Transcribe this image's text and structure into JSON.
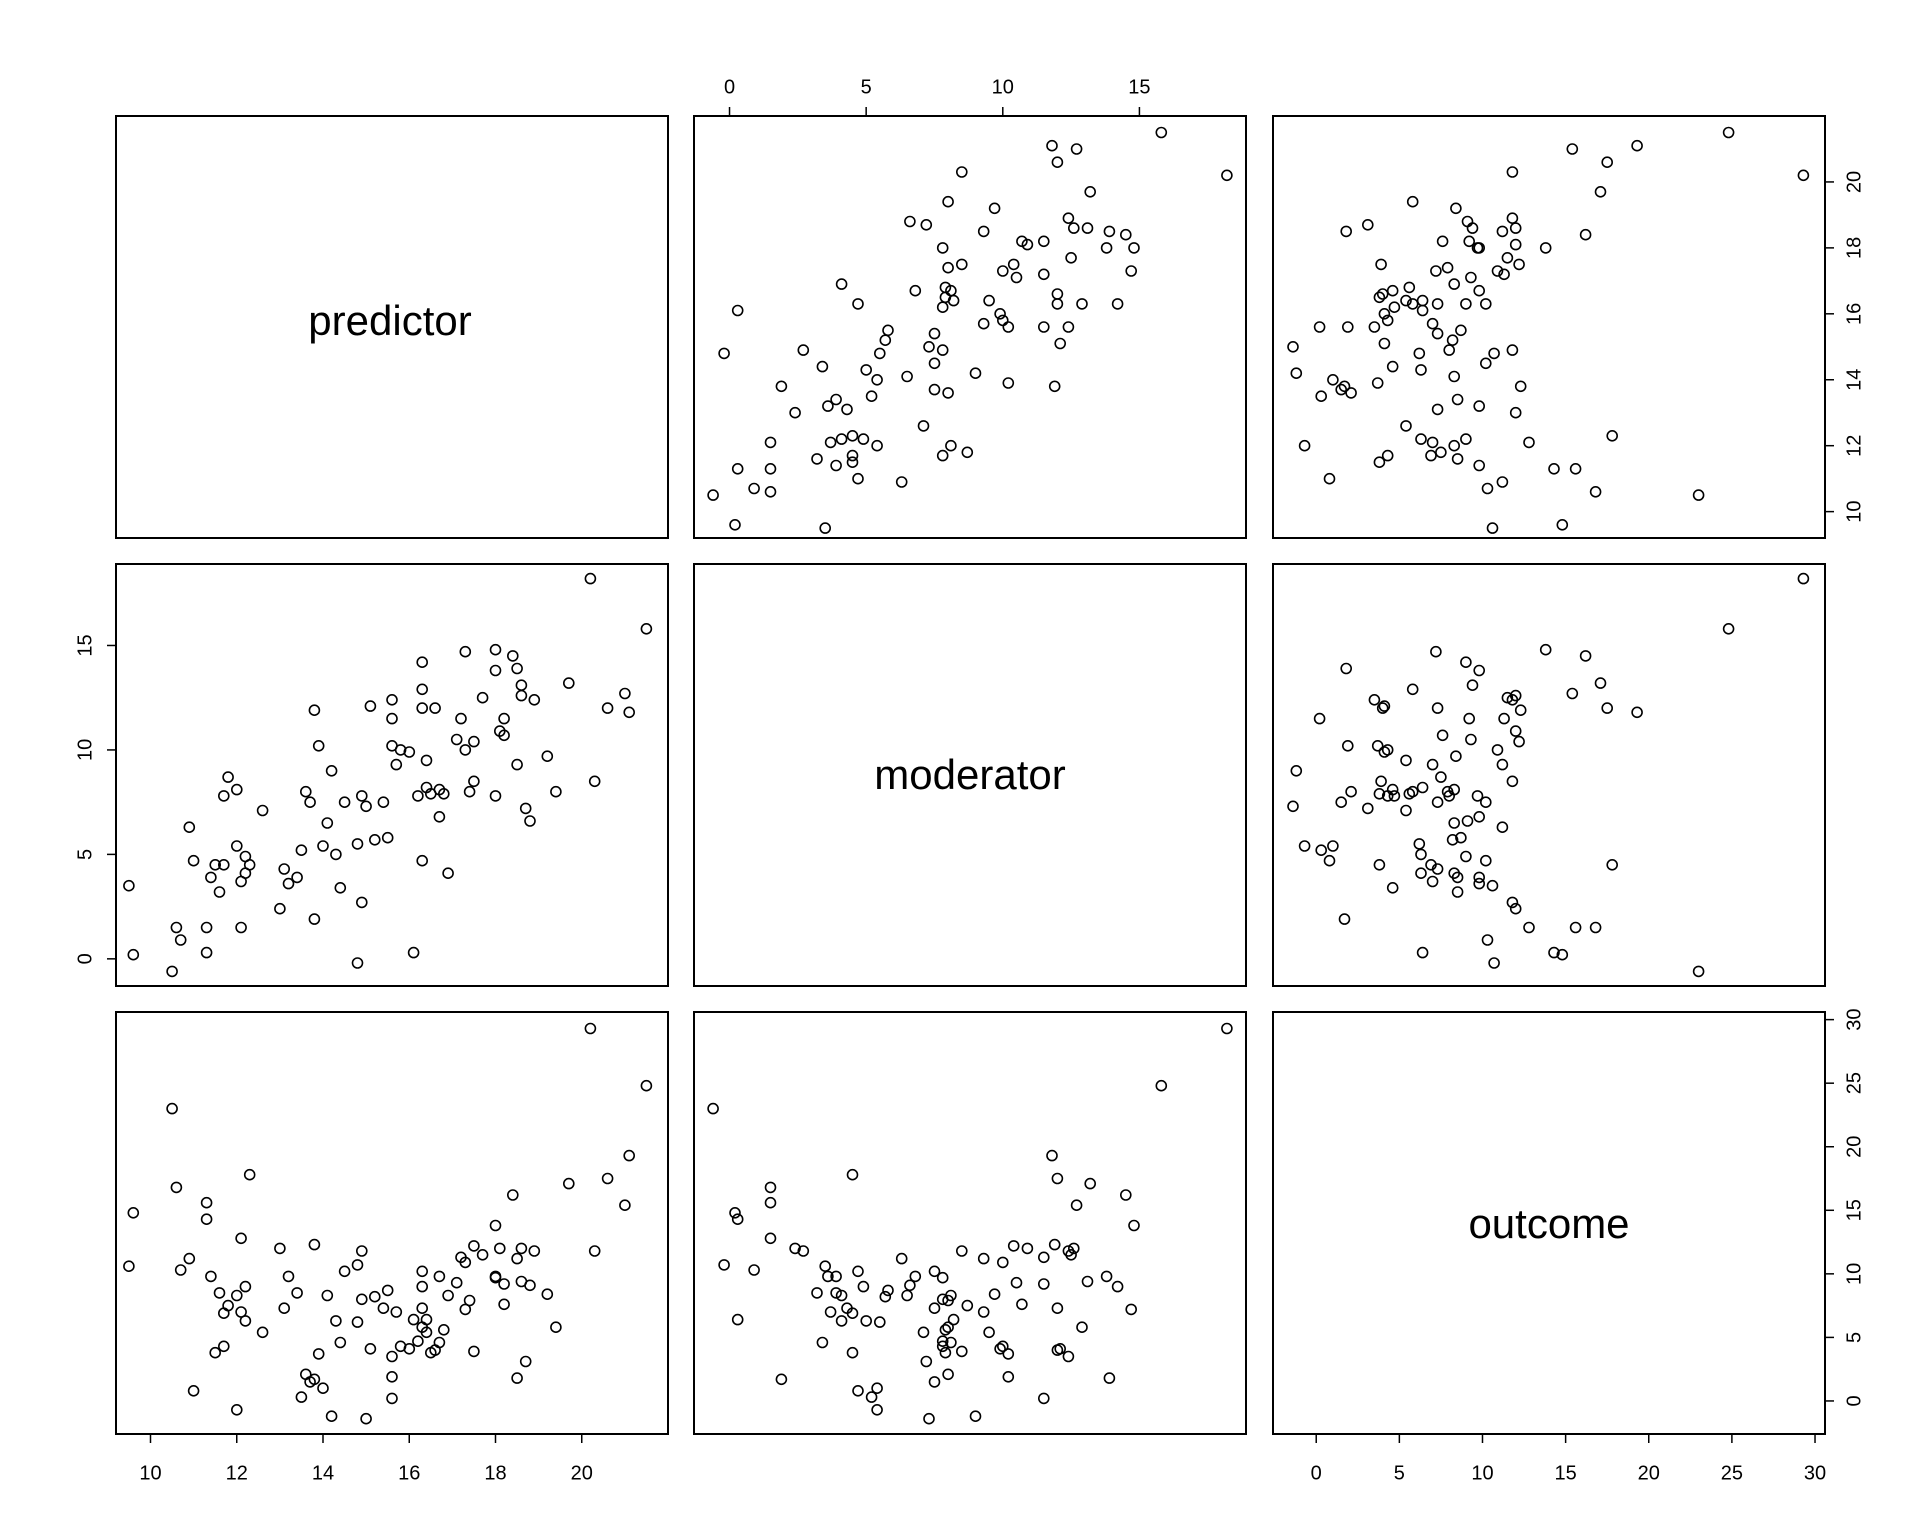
{
  "chart_data": {
    "type": "scatter",
    "variables": [
      "predictor",
      "moderator",
      "outcome"
    ],
    "ranges": {
      "predictor": [
        9.2,
        22.0
      ],
      "moderator": [
        -1.3,
        18.9
      ],
      "outcome": [
        -2.6,
        30.6
      ]
    },
    "ticks": {
      "predictor": [
        10,
        12,
        14,
        16,
        18,
        20
      ],
      "moderator": [
        0,
        5,
        10,
        15
      ],
      "outcome": [
        0,
        5,
        10,
        15,
        20,
        25,
        30
      ]
    },
    "tick_labels": {
      "predictor": [
        "10",
        "12",
        "14",
        "16",
        "18",
        "20"
      ],
      "moderator": [
        "0",
        "5",
        "10",
        "15"
      ],
      "outcome": [
        "0",
        "5",
        "10",
        "15",
        "20",
        "25",
        "30"
      ]
    },
    "points": [
      [
        9.5,
        3.5,
        10.6
      ],
      [
        9.6,
        0.2,
        14.8
      ],
      [
        10.6,
        1.5,
        16.8
      ],
      [
        10.7,
        0.9,
        10.3
      ],
      [
        10.5,
        -0.6,
        23.0
      ],
      [
        10.9,
        6.3,
        11.2
      ],
      [
        11.0,
        4.7,
        0.8
      ],
      [
        11.3,
        0.3,
        14.3
      ],
      [
        11.3,
        1.5,
        15.6
      ],
      [
        11.4,
        3.9,
        9.8
      ],
      [
        11.5,
        4.5,
        3.8
      ],
      [
        11.6,
        3.2,
        8.5
      ],
      [
        11.7,
        7.8,
        4.3
      ],
      [
        11.7,
        4.5,
        6.9
      ],
      [
        11.8,
        8.7,
        7.5
      ],
      [
        12.0,
        5.4,
        -0.7
      ],
      [
        12.0,
        8.1,
        8.3
      ],
      [
        12.1,
        1.5,
        12.8
      ],
      [
        12.1,
        3.7,
        7.0
      ],
      [
        12.2,
        4.1,
        6.3
      ],
      [
        12.2,
        4.9,
        9.0
      ],
      [
        12.3,
        4.5,
        17.8
      ],
      [
        12.6,
        7.1,
        5.4
      ],
      [
        13.0,
        2.4,
        12.0
      ],
      [
        13.1,
        4.3,
        7.3
      ],
      [
        13.2,
        3.6,
        9.8
      ],
      [
        13.4,
        3.9,
        8.5
      ],
      [
        13.5,
        5.2,
        0.3
      ],
      [
        13.6,
        8.0,
        2.1
      ],
      [
        13.7,
        7.5,
        1.5
      ],
      [
        13.8,
        11.9,
        12.3
      ],
      [
        13.8,
        1.9,
        1.7
      ],
      [
        13.9,
        10.2,
        3.7
      ],
      [
        14.0,
        5.4,
        1.0
      ],
      [
        14.1,
        6.5,
        8.3
      ],
      [
        14.2,
        9.0,
        -1.2
      ],
      [
        14.3,
        5.0,
        6.3
      ],
      [
        14.4,
        3.4,
        4.6
      ],
      [
        14.5,
        7.5,
        10.2
      ],
      [
        14.8,
        -0.2,
        10.7
      ],
      [
        14.8,
        5.5,
        6.2
      ],
      [
        14.9,
        2.7,
        11.8
      ],
      [
        14.9,
        7.8,
        8.0
      ],
      [
        15.0,
        7.3,
        -1.4
      ],
      [
        15.1,
        12.1,
        4.1
      ],
      [
        15.2,
        5.7,
        8.2
      ],
      [
        15.4,
        7.5,
        7.3
      ],
      [
        15.5,
        5.8,
        8.7
      ],
      [
        15.6,
        10.2,
        1.9
      ],
      [
        15.6,
        11.5,
        0.2
      ],
      [
        15.6,
        12.4,
        3.5
      ],
      [
        15.7,
        9.3,
        7.0
      ],
      [
        15.8,
        10.0,
        4.3
      ],
      [
        16.0,
        9.9,
        4.1
      ],
      [
        16.1,
        0.3,
        6.4
      ],
      [
        16.2,
        7.8,
        4.7
      ],
      [
        16.3,
        12.9,
        5.8
      ],
      [
        16.3,
        14.2,
        9.0
      ],
      [
        16.3,
        4.7,
        10.2
      ],
      [
        16.3,
        12.0,
        7.3
      ],
      [
        16.4,
        8.2,
        6.4
      ],
      [
        16.4,
        9.5,
        5.4
      ],
      [
        16.5,
        7.9,
        3.8
      ],
      [
        16.6,
        12.0,
        4.0
      ],
      [
        16.7,
        6.8,
        9.8
      ],
      [
        16.7,
        8.1,
        4.6
      ],
      [
        16.8,
        7.9,
        5.6
      ],
      [
        16.9,
        4.1,
        8.3
      ],
      [
        17.1,
        10.5,
        9.3
      ],
      [
        17.2,
        11.5,
        11.3
      ],
      [
        17.3,
        14.7,
        7.2
      ],
      [
        17.3,
        10.0,
        10.9
      ],
      [
        17.4,
        8.0,
        7.9
      ],
      [
        17.5,
        10.4,
        12.2
      ],
      [
        17.5,
        8.5,
        3.9
      ],
      [
        17.7,
        12.5,
        11.5
      ],
      [
        18.0,
        13.8,
        9.8
      ],
      [
        18.0,
        14.8,
        13.8
      ],
      [
        18.0,
        7.8,
        9.7
      ],
      [
        18.1,
        10.9,
        12.0
      ],
      [
        18.2,
        10.7,
        7.6
      ],
      [
        18.2,
        11.5,
        9.2
      ],
      [
        18.4,
        14.5,
        16.2
      ],
      [
        18.5,
        13.9,
        1.8
      ],
      [
        18.5,
        9.3,
        11.2
      ],
      [
        18.6,
        12.6,
        12.0
      ],
      [
        18.6,
        13.1,
        9.4
      ],
      [
        18.7,
        7.2,
        3.1
      ],
      [
        18.8,
        6.6,
        9.1
      ],
      [
        18.9,
        12.4,
        11.8
      ],
      [
        19.2,
        9.7,
        8.4
      ],
      [
        19.4,
        8.0,
        5.8
      ],
      [
        19.7,
        13.2,
        17.1
      ],
      [
        20.2,
        18.2,
        29.3
      ],
      [
        20.3,
        8.5,
        11.8
      ],
      [
        20.6,
        12.0,
        17.5
      ],
      [
        21.0,
        12.7,
        15.4
      ],
      [
        21.1,
        11.8,
        19.3
      ],
      [
        21.5,
        15.8,
        24.8
      ]
    ]
  },
  "labels": {
    "predictor": "predictor",
    "moderator": "moderator",
    "outcome": "outcome"
  }
}
